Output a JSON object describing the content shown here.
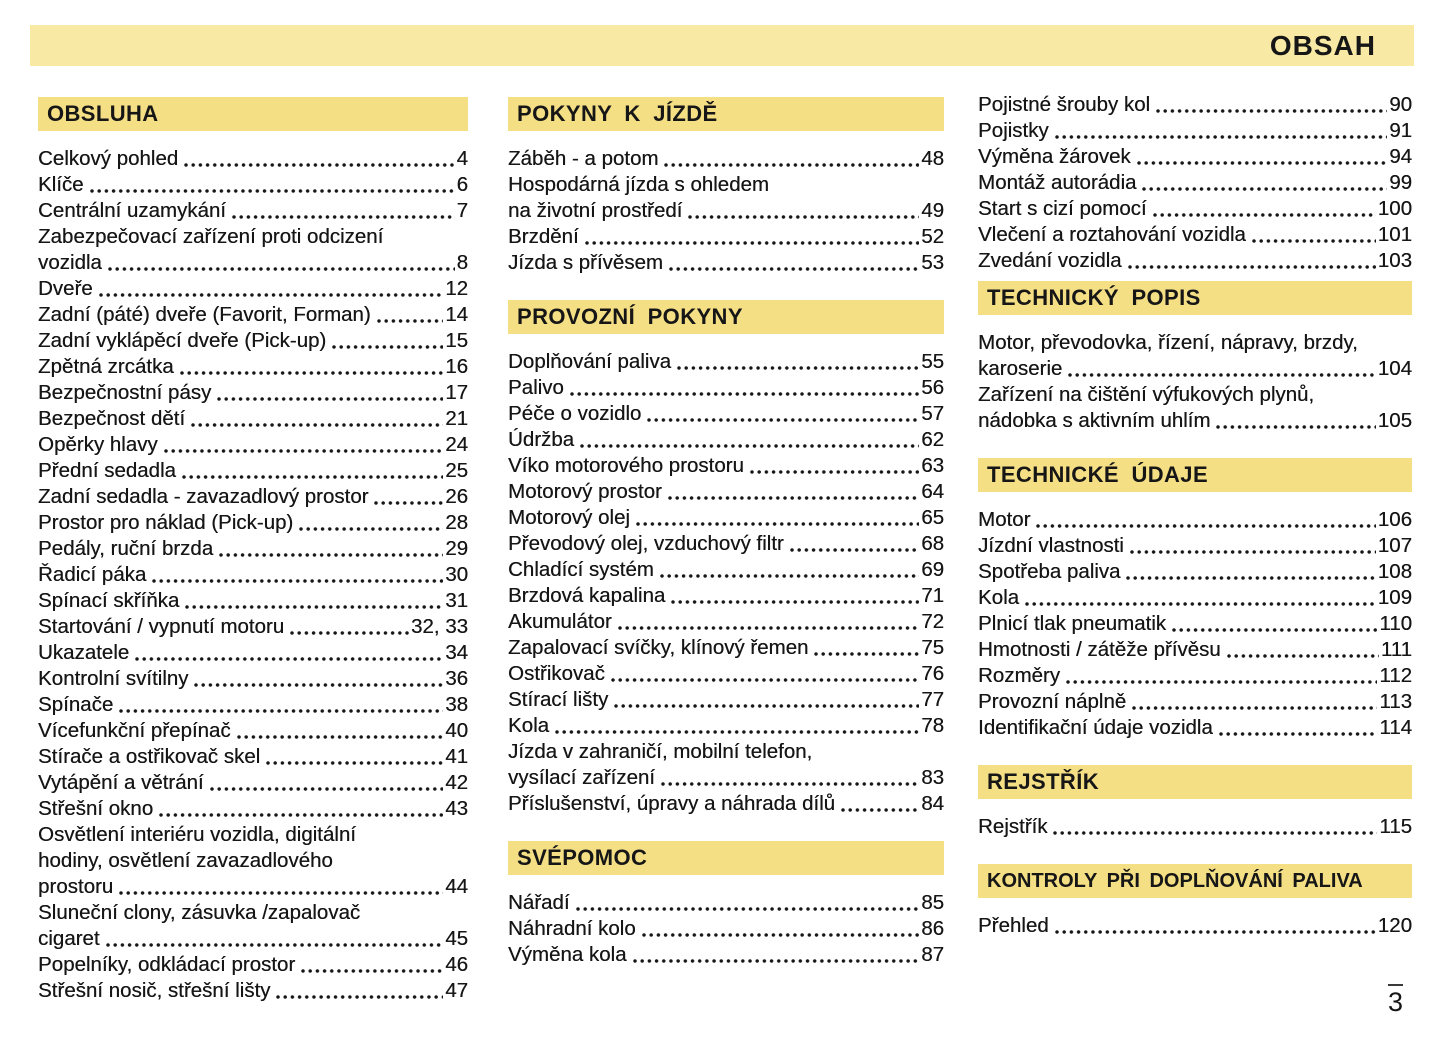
{
  "page": {
    "title": "OBSAH",
    "page_number": "3",
    "colors": {
      "banner": "#F8E9A4",
      "section": "#F5DF85",
      "text": "#161616",
      "background": "#FFFFFF"
    }
  },
  "columns": [
    {
      "blocks": [
        {
          "header": "OBSLUHA",
          "entries": [
            {
              "lines": [
                "Celkový pohled"
              ],
              "page": "4"
            },
            {
              "lines": [
                "Klíče"
              ],
              "page": "6"
            },
            {
              "lines": [
                "Centrální uzamykání"
              ],
              "page": "7"
            },
            {
              "lines": [
                "Zabezpečovací zařízení proti odcizení",
                "vozidla"
              ],
              "page": "8"
            },
            {
              "lines": [
                "Dveře"
              ],
              "page": "12"
            },
            {
              "lines": [
                "Zadní (páté) dveře (Favorit, Forman)"
              ],
              "page": "14"
            },
            {
              "lines": [
                "Zadní vyklápěcí dveře (Pick-up)"
              ],
              "page": "15"
            },
            {
              "lines": [
                "Zpětná zrcátka"
              ],
              "page": "16"
            },
            {
              "lines": [
                "Bezpečnostní pásy"
              ],
              "page": "17"
            },
            {
              "lines": [
                "Bezpečnost dětí"
              ],
              "page": "21"
            },
            {
              "lines": [
                "Opěrky hlavy"
              ],
              "page": "24"
            },
            {
              "lines": [
                "Přední sedadla"
              ],
              "page": "25"
            },
            {
              "lines": [
                "Zadní sedadla - zavazadlový prostor"
              ],
              "page": "26"
            },
            {
              "lines": [
                "Prostor pro náklad (Pick-up)"
              ],
              "page": "28"
            },
            {
              "lines": [
                "Pedály, ruční brzda"
              ],
              "page": "29"
            },
            {
              "lines": [
                "Řadicí páka"
              ],
              "page": "30"
            },
            {
              "lines": [
                "Spínací skříňka"
              ],
              "page": "31"
            },
            {
              "lines": [
                "Startování / vypnutí motoru"
              ],
              "page": "32, 33"
            },
            {
              "lines": [
                "Ukazatele"
              ],
              "page": "34"
            },
            {
              "lines": [
                "Kontrolní svítilny"
              ],
              "page": "36"
            },
            {
              "lines": [
                "Spínače"
              ],
              "page": "38"
            },
            {
              "lines": [
                "Vícefunkční přepínač"
              ],
              "page": "40"
            },
            {
              "lines": [
                "Stírače a ostřikovač skel"
              ],
              "page": "41"
            },
            {
              "lines": [
                "Vytápění a větrání"
              ],
              "page": "42"
            },
            {
              "lines": [
                "Střešní okno"
              ],
              "page": "43"
            },
            {
              "lines": [
                "Osvětlení interiéru vozidla, digitální",
                "hodiny, osvětlení zavazadlového",
                "prostoru"
              ],
              "page": "44"
            },
            {
              "lines": [
                "Sluneční clony, zásuvka /zapalovač",
                "cigaret"
              ],
              "page": "45"
            },
            {
              "lines": [
                "Popelníky, odkládací prostor"
              ],
              "page": "46"
            },
            {
              "lines": [
                "Střešní nosič, střešní lišty"
              ],
              "page": "47"
            }
          ]
        }
      ]
    },
    {
      "blocks": [
        {
          "header": "POKYNY K JÍZDĚ",
          "entries": [
            {
              "lines": [
                "Záběh - a potom"
              ],
              "page": "48"
            },
            {
              "lines": [
                "Hospodárná jízda s ohledem",
                "na životní prostředí"
              ],
              "page": "49"
            },
            {
              "lines": [
                "Brzdění"
              ],
              "page": "52"
            },
            {
              "lines": [
                "Jízda s přívěsem"
              ],
              "page": "53"
            }
          ]
        },
        {
          "header": "PROVOZNÍ POKYNY",
          "entries": [
            {
              "lines": [
                "Doplňování paliva"
              ],
              "page": "55"
            },
            {
              "lines": [
                "Palivo"
              ],
              "page": "56"
            },
            {
              "lines": [
                "Péče o vozidlo"
              ],
              "page": "57"
            },
            {
              "lines": [
                "Údržba"
              ],
              "page": "62"
            },
            {
              "lines": [
                "Víko motorového prostoru"
              ],
              "page": "63"
            },
            {
              "lines": [
                "Motorový prostor"
              ],
              "page": "64"
            },
            {
              "lines": [
                "Motorový olej"
              ],
              "page": "65"
            },
            {
              "lines": [
                "Převodový olej, vzduchový filtr"
              ],
              "page": "68"
            },
            {
              "lines": [
                "Chladící systém"
              ],
              "page": "69"
            },
            {
              "lines": [
                "Brzdová kapalina"
              ],
              "page": "71"
            },
            {
              "lines": [
                "Akumulátor"
              ],
              "page": "72"
            },
            {
              "lines": [
                "Zapalovací svíčky, klínový řemen"
              ],
              "page": "75"
            },
            {
              "lines": [
                "Ostřikovač"
              ],
              "page": "76"
            },
            {
              "lines": [
                "Stírací lišty"
              ],
              "page": "77"
            },
            {
              "lines": [
                "Kola"
              ],
              "page": "78"
            },
            {
              "lines": [
                "Jízda v zahraničí, mobilní telefon,",
                "vysílací zařízení"
              ],
              "page": "83"
            },
            {
              "lines": [
                "Příslušenství, úpravy a náhrada dílů"
              ],
              "page": "84"
            }
          ]
        },
        {
          "header": "SVÉPOMOC",
          "entries": [
            {
              "lines": [
                "Nářadí"
              ],
              "page": "85"
            },
            {
              "lines": [
                "Náhradní kolo"
              ],
              "page": "86"
            },
            {
              "lines": [
                "Výměna kola"
              ],
              "page": "87"
            }
          ]
        }
      ]
    },
    {
      "blocks": [
        {
          "header": null,
          "entries": [
            {
              "lines": [
                "Pojistné šrouby kol"
              ],
              "page": "90"
            },
            {
              "lines": [
                "Pojistky"
              ],
              "page": "91"
            },
            {
              "lines": [
                "Výměna žárovek"
              ],
              "page": "94"
            },
            {
              "lines": [
                "Montáž autorádia"
              ],
              "page": "99"
            },
            {
              "lines": [
                "Start s cizí pomocí"
              ],
              "page": "100"
            },
            {
              "lines": [
                "Vlečení a roztahování vozidla"
              ],
              "page": "101"
            },
            {
              "lines": [
                "Zvedání vozidla"
              ],
              "page": "103"
            }
          ]
        },
        {
          "header": "TECHNICKÝ POPIS",
          "entries": [
            {
              "lines": [
                "Motor, převodovka, řízení, nápravy, brzdy,",
                "karoserie"
              ],
              "page": "104"
            },
            {
              "lines": [
                "Zařízení na čištění výfukových plynů,",
                "nádobka s aktivním uhlím"
              ],
              "page": "105"
            }
          ]
        },
        {
          "header": "TECHNICKÉ ÚDAJE",
          "entries": [
            {
              "lines": [
                "Motor"
              ],
              "page": "106"
            },
            {
              "lines": [
                "Jízdní vlastnosti"
              ],
              "page": "107"
            },
            {
              "lines": [
                "Spotřeba paliva"
              ],
              "page": "108"
            },
            {
              "lines": [
                "Kola"
              ],
              "page": "109"
            },
            {
              "lines": [
                "Plnicí tlak pneumatik"
              ],
              "page": "110"
            },
            {
              "lines": [
                "Hmotnosti / zátěže přívěsu"
              ],
              "page": "111"
            },
            {
              "lines": [
                "Rozměry"
              ],
              "page": "112"
            },
            {
              "lines": [
                "Provozní náplně"
              ],
              "page": "113"
            },
            {
              "lines": [
                "Identifikační údaje vozidla"
              ],
              "page": "114"
            }
          ]
        },
        {
          "header": "REJSTŘÍK",
          "entries": [
            {
              "lines": [
                "Rejstřík"
              ],
              "page": "115"
            }
          ]
        },
        {
          "header": "KONTROLY PŘI DOPLŇOVÁNÍ PALIVA",
          "entries": [
            {
              "lines": [
                "Přehled"
              ],
              "page": "120"
            }
          ]
        }
      ]
    }
  ]
}
